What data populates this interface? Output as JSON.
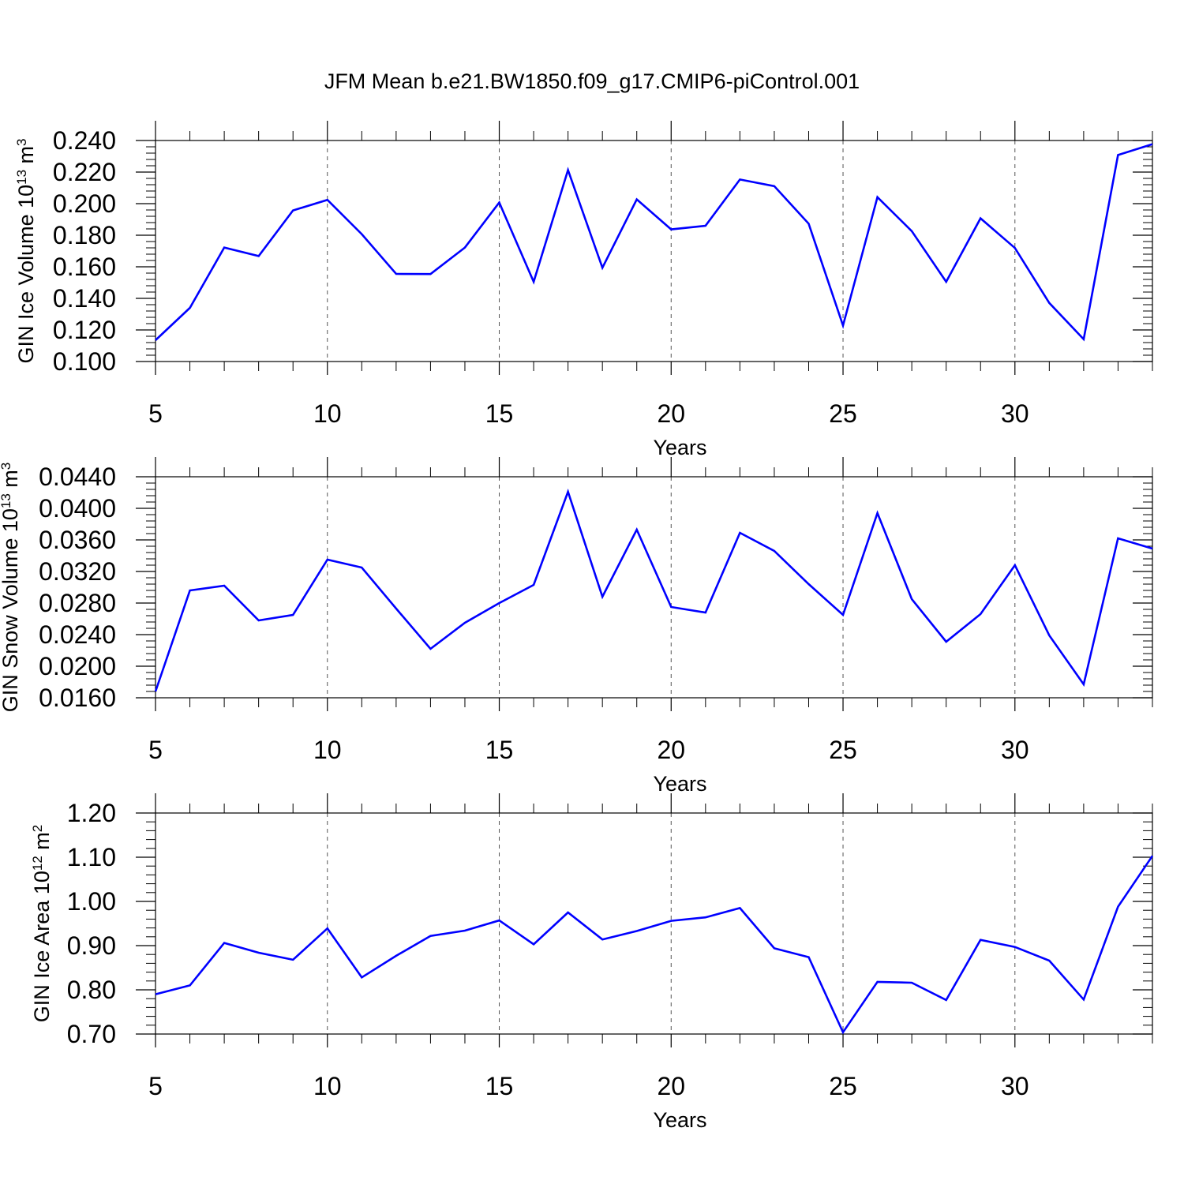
{
  "title": "JFM Mean b.e21.BW1850.f09_g17.CMIP6-piControl.001",
  "colors": {
    "line": "#0000ff",
    "axis": "#000000",
    "grid": "#555555"
  },
  "chart_data": [
    {
      "type": "line",
      "xlabel": "Years",
      "ylabel": "GIN Ice Volume 10",
      "ylabel_sup": "13",
      "ylabel_unit": " m",
      "ylabel_unit_sup": "3",
      "xlim": [
        5,
        34
      ],
      "ylim": [
        0.1,
        0.24
      ],
      "xticks": [
        5,
        10,
        15,
        20,
        25,
        30
      ],
      "xtick_labels": [
        "5",
        "10",
        "15",
        "20",
        "25",
        "30"
      ],
      "yticks": [
        0.1,
        0.12,
        0.14,
        0.16,
        0.18,
        0.2,
        0.22,
        0.24
      ],
      "ytick_labels": [
        "0.100",
        "0.120",
        "0.140",
        "0.160",
        "0.180",
        "0.200",
        "0.220",
        "0.240"
      ],
      "grid": "vertical dashed at major x ticks",
      "series": [
        {
          "x": [
            5,
            6,
            7,
            8,
            9,
            10,
            11,
            12,
            13,
            14,
            15,
            16,
            17,
            18,
            19,
            20,
            21,
            22,
            23,
            24,
            25,
            26,
            27,
            28,
            29,
            30,
            31,
            32,
            33,
            34
          ],
          "values": [
            0.1135,
            0.134,
            0.1722,
            0.1668,
            0.1957,
            0.2024,
            0.1807,
            0.1555,
            0.1554,
            0.1722,
            0.2007,
            0.1505,
            0.2213,
            0.1594,
            0.2027,
            0.1837,
            0.186,
            0.2153,
            0.2111,
            0.1873,
            0.1228,
            0.2041,
            0.1826,
            0.1505,
            0.1907,
            0.1719,
            0.1371,
            0.1141,
            0.2308,
            0.2377
          ]
        }
      ]
    },
    {
      "type": "line",
      "xlabel": "Years",
      "ylabel": "GIN Snow Volume 10",
      "ylabel_sup": "13",
      "ylabel_unit": " m",
      "ylabel_unit_sup": "3",
      "xlim": [
        5,
        34
      ],
      "ylim": [
        0.016,
        0.044
      ],
      "xticks": [
        5,
        10,
        15,
        20,
        25,
        30
      ],
      "xtick_labels": [
        "5",
        "10",
        "15",
        "20",
        "25",
        "30"
      ],
      "yticks": [
        0.016,
        0.02,
        0.024,
        0.028,
        0.032,
        0.036,
        0.04,
        0.044
      ],
      "ytick_labels": [
        "0.0160",
        "0.0200",
        "0.0240",
        "0.0280",
        "0.0320",
        "0.0360",
        "0.0400",
        "0.0440"
      ],
      "grid": "vertical dashed at major x ticks",
      "series": [
        {
          "x": [
            5,
            6,
            7,
            8,
            9,
            10,
            11,
            12,
            13,
            14,
            15,
            16,
            17,
            18,
            19,
            20,
            21,
            22,
            23,
            24,
            25,
            26,
            27,
            28,
            29,
            30,
            31,
            32,
            33,
            34
          ],
          "values": [
            0.0168,
            0.0296,
            0.0302,
            0.0258,
            0.0265,
            0.0335,
            0.0325,
            0.0273,
            0.0222,
            0.0255,
            0.028,
            0.0303,
            0.0421,
            0.0288,
            0.0373,
            0.0275,
            0.0268,
            0.0369,
            0.0346,
            0.0304,
            0.0265,
            0.0394,
            0.0285,
            0.0231,
            0.0266,
            0.0328,
            0.0239,
            0.0177,
            0.0362,
            0.0349
          ]
        }
      ]
    },
    {
      "type": "line",
      "xlabel": "Years",
      "ylabel": "GIN Ice Area 10",
      "ylabel_sup": "12",
      "ylabel_unit": " m",
      "ylabel_unit_sup": "2",
      "xlim": [
        5,
        34
      ],
      "ylim": [
        0.7,
        1.2
      ],
      "xticks": [
        5,
        10,
        15,
        20,
        25,
        30
      ],
      "xtick_labels": [
        "5",
        "10",
        "15",
        "20",
        "25",
        "30"
      ],
      "yticks": [
        0.7,
        0.8,
        0.9,
        1.0,
        1.1,
        1.2
      ],
      "ytick_labels": [
        "0.70",
        "0.80",
        "0.90",
        "1.00",
        "1.10",
        "1.20"
      ],
      "grid": "vertical dashed at major x ticks",
      "series": [
        {
          "x": [
            5,
            6,
            7,
            8,
            9,
            10,
            11,
            12,
            13,
            14,
            15,
            16,
            17,
            18,
            19,
            20,
            21,
            22,
            23,
            24,
            25,
            26,
            27,
            28,
            29,
            30,
            31,
            32,
            33,
            34
          ],
          "values": [
            0.79,
            0.81,
            0.906,
            0.884,
            0.868,
            0.939,
            0.828,
            0.877,
            0.922,
            0.934,
            0.957,
            0.903,
            0.975,
            0.914,
            0.933,
            0.956,
            0.964,
            0.985,
            0.894,
            0.874,
            0.704,
            0.818,
            0.816,
            0.777,
            0.913,
            0.897,
            0.866,
            0.778,
            0.988,
            1.103
          ]
        }
      ]
    }
  ]
}
